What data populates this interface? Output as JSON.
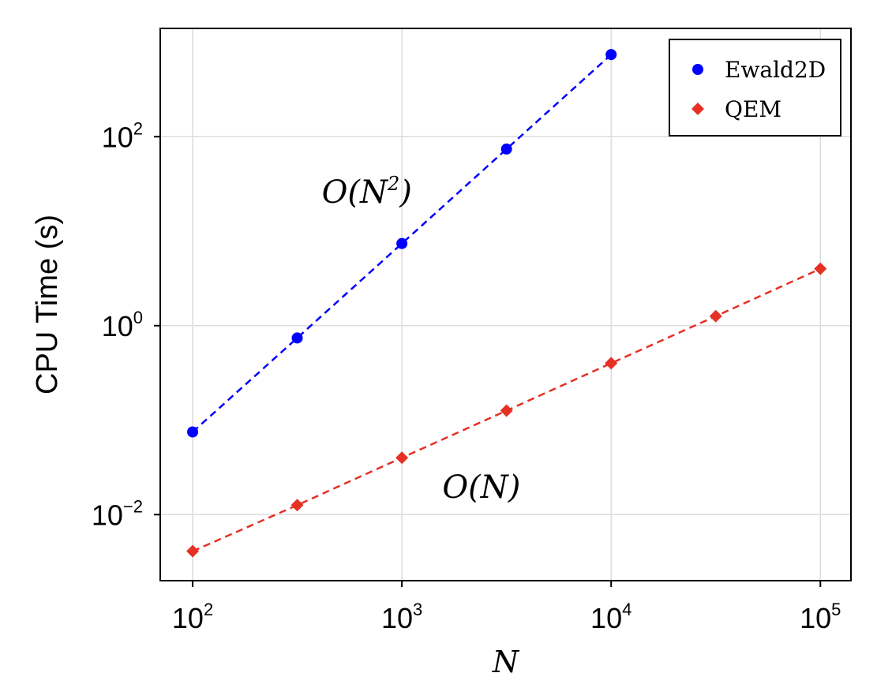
{
  "chart_data": {
    "type": "scatter",
    "xscale": "log",
    "yscale": "log",
    "xlabel": "N",
    "ylabel": "CPU Time (s)",
    "xlim": [
      70,
      140000
    ],
    "ylim": [
      0.002,
      1400
    ],
    "grid": true,
    "legend_position": "top-right",
    "x_ticks": [
      {
        "value": 100,
        "base": "10",
        "exp": "2"
      },
      {
        "value": 1000,
        "base": "10",
        "exp": "3"
      },
      {
        "value": 10000,
        "base": "10",
        "exp": "4"
      },
      {
        "value": 100000,
        "base": "10",
        "exp": "5"
      }
    ],
    "y_ticks": [
      {
        "value": 0.01,
        "base": "10",
        "exp": "−2"
      },
      {
        "value": 1,
        "base": "10",
        "exp": "0"
      },
      {
        "value": 100,
        "base": "10",
        "exp": "2"
      }
    ],
    "series": [
      {
        "name": "Ewald2D",
        "color": "#0000ff",
        "marker": "circle",
        "line": "dashed",
        "x": [
          100,
          316,
          1000,
          3162,
          10000
        ],
        "y": [
          0.075,
          0.74,
          7.4,
          74,
          740
        ]
      },
      {
        "name": "QEM",
        "color": "#e63024",
        "marker": "diamond",
        "line": "dashed",
        "x": [
          100,
          316,
          1000,
          3162,
          10000,
          31623,
          100000
        ],
        "y": [
          0.0041,
          0.0126,
          0.04,
          0.126,
          0.4,
          1.26,
          4.0
        ]
      }
    ],
    "annotations": [
      {
        "text_main": "O(N",
        "text_sup": "2",
        "text_end": ")",
        "x": 680,
        "y": 20
      },
      {
        "text_main": "O(N)",
        "text_sup": "",
        "text_end": "",
        "x": 2400,
        "y": 0.015
      }
    ]
  }
}
